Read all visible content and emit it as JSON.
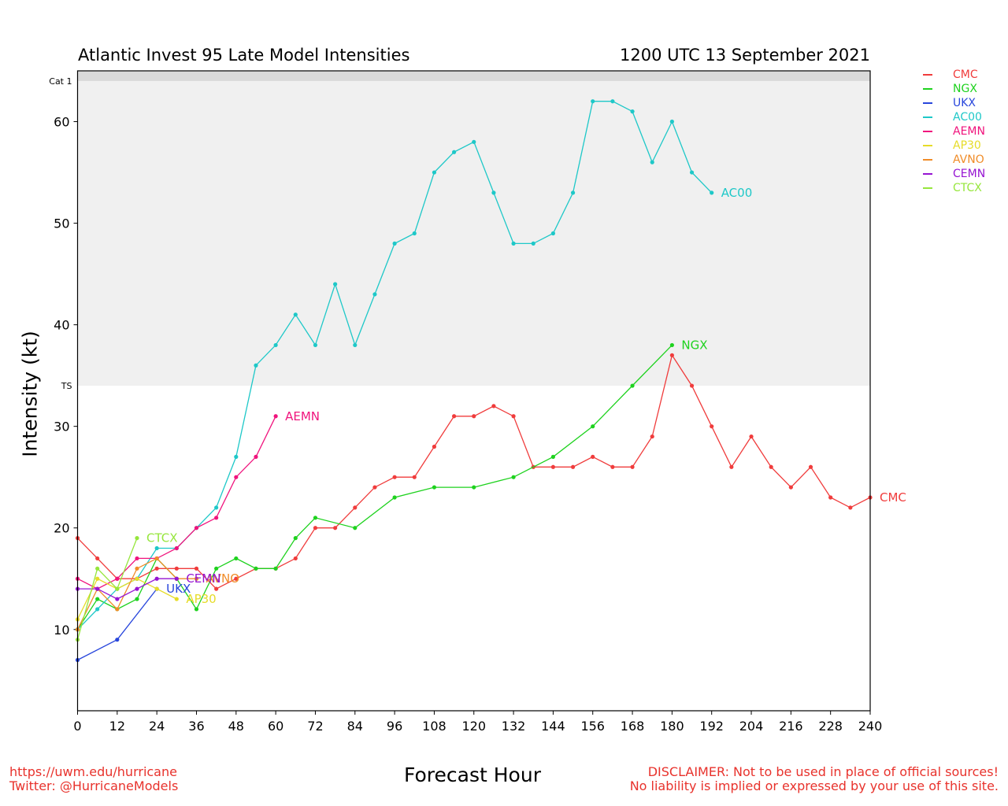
{
  "header": {
    "title_left": "Atlantic Invest 95 Late Model Intensities",
    "title_right": "1200 UTC 13 September 2021"
  },
  "footer": {
    "url": "https://uwm.edu/hurricane",
    "twitter": "Twitter: @HurricaneModels",
    "disclaimer_1": "DISCLAIMER: Not to be used in place of official sources!",
    "disclaimer_2": "No liability is implied or expressed by your use of this site."
  },
  "chart_data": {
    "type": "line",
    "xlabel": "Forecast Hour",
    "ylabel": "Intensity (kt)",
    "xlim": [
      0,
      240
    ],
    "ylim": [
      2,
      65
    ],
    "xticks": [
      0,
      12,
      24,
      36,
      48,
      60,
      72,
      84,
      96,
      108,
      120,
      132,
      144,
      156,
      168,
      180,
      192,
      204,
      216,
      228,
      240
    ],
    "yticks": [
      10,
      20,
      30,
      40,
      50,
      60
    ],
    "grid": false,
    "legend_position": "right, outside plot",
    "bands": [
      {
        "label": "TS",
        "from": 34,
        "to": 64,
        "color": "#f0f0f0"
      },
      {
        "label": "Cat 1",
        "from": 64,
        "to": 70,
        "color": "#d9d9d9"
      }
    ],
    "series": [
      {
        "name": "CMC",
        "color": "#f03c3c",
        "x": [
          0,
          6,
          12,
          18,
          24,
          30,
          36,
          42,
          48,
          54,
          60,
          66,
          72,
          78,
          84,
          90,
          96,
          102,
          108,
          114,
          120,
          126,
          132,
          138,
          144,
          150,
          156,
          162,
          168,
          174,
          180,
          186,
          192,
          198,
          204,
          210,
          216,
          222,
          228,
          234,
          240
        ],
        "y": [
          19,
          17,
          15,
          15,
          16,
          16,
          16,
          14,
          15,
          16,
          16,
          17,
          20,
          20,
          22,
          24,
          25,
          25,
          28,
          31,
          31,
          32,
          31,
          26,
          26,
          26,
          27,
          26,
          26,
          29,
          37,
          34,
          30,
          26,
          29,
          26,
          24,
          26,
          23,
          22,
          23
        ]
      },
      {
        "name": "NGX",
        "color": "#1ed21e",
        "x": [
          0,
          6,
          12,
          18,
          24,
          30,
          36,
          42,
          48,
          54,
          60,
          66,
          72,
          84,
          96,
          108,
          120,
          132,
          144,
          156,
          168,
          180
        ],
        "y": [
          10,
          13,
          12,
          13,
          17,
          15,
          12,
          16,
          17,
          16,
          16,
          19,
          21,
          20,
          23,
          24,
          24,
          25,
          27,
          30,
          34,
          38
        ]
      },
      {
        "name": "UKX",
        "color": "#2846dc",
        "x": [
          0,
          12,
          24
        ],
        "y": [
          7,
          9,
          14
        ]
      },
      {
        "name": "AC00",
        "color": "#1ec8c8",
        "x": [
          0,
          6,
          12,
          18,
          24,
          30,
          36,
          42,
          48,
          54,
          60,
          66,
          72,
          78,
          84,
          90,
          96,
          102,
          108,
          114,
          120,
          126,
          132,
          138,
          144,
          150,
          156,
          162,
          168,
          174,
          180,
          186,
          192
        ],
        "y": [
          10,
          12,
          14,
          15,
          18,
          18,
          20,
          22,
          27,
          36,
          38,
          41,
          38,
          44,
          38,
          43,
          48,
          49,
          55,
          57,
          58,
          53,
          48,
          48,
          49,
          53,
          62,
          62,
          61,
          56,
          60,
          55,
          53
        ]
      },
      {
        "name": "AEMN",
        "color": "#f0147d",
        "x": [
          0,
          6,
          12,
          18,
          24,
          30,
          36,
          42,
          48,
          54,
          60
        ],
        "y": [
          15,
          14,
          15,
          17,
          17,
          18,
          20,
          21,
          25,
          27,
          31
        ]
      },
      {
        "name": "AP30",
        "color": "#e6dc28",
        "x": [
          0,
          6,
          12,
          18,
          24,
          30
        ],
        "y": [
          11,
          15,
          14,
          15,
          14,
          13
        ]
      },
      {
        "name": "AVNO",
        "color": "#f08c28",
        "x": [
          0,
          6,
          12,
          18,
          24,
          30,
          36
        ],
        "y": [
          10,
          14,
          12,
          16,
          17,
          15,
          15
        ]
      },
      {
        "name": "CEMN",
        "color": "#9614d2",
        "x": [
          0,
          6,
          12,
          18,
          24,
          30
        ],
        "y": [
          14,
          14,
          13,
          14,
          15,
          15
        ]
      },
      {
        "name": "CTCX",
        "color": "#96e63c",
        "x": [
          0,
          6,
          12,
          18
        ],
        "y": [
          9,
          16,
          14,
          19
        ]
      }
    ]
  }
}
